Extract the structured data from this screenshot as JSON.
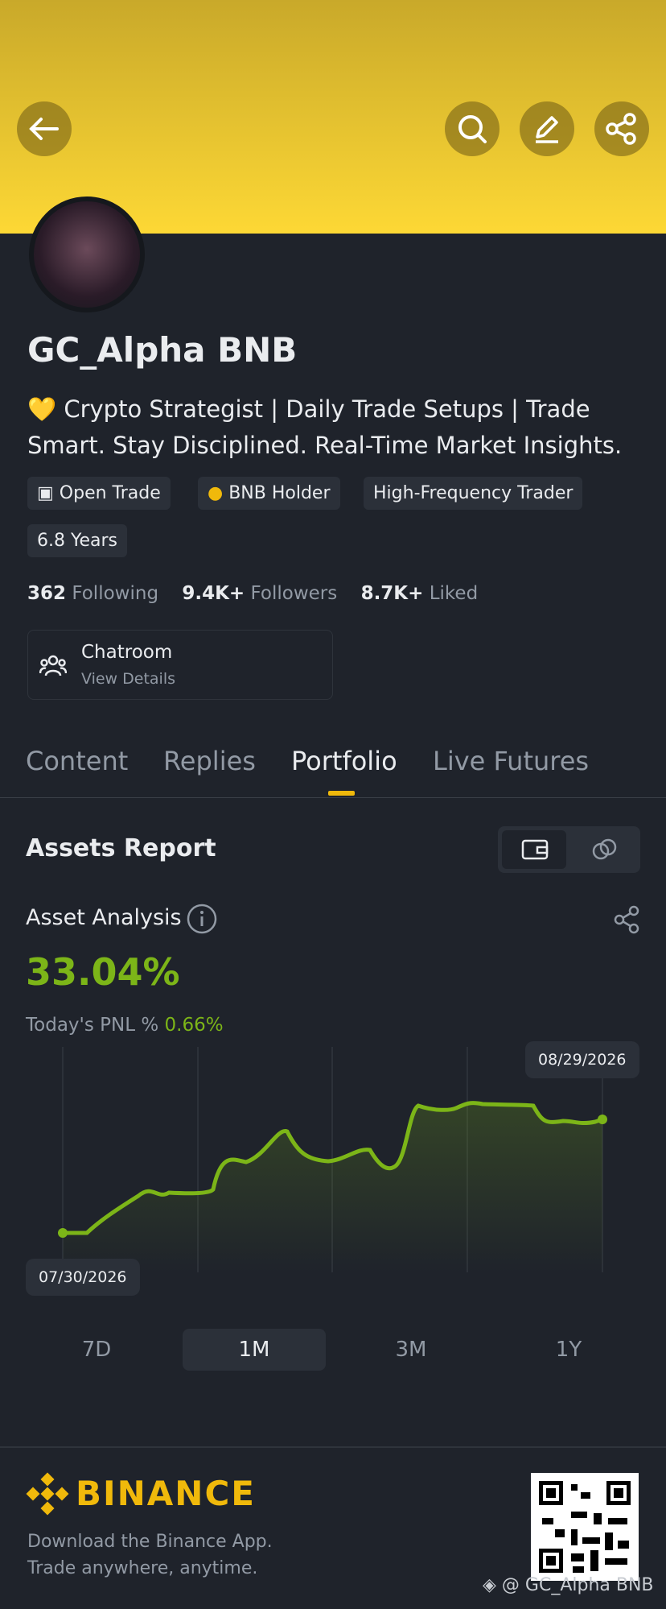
{
  "profile": {
    "name": "GC_Alpha BNB",
    "bio": "💛 Crypto Strategist | Daily Trade Setups | Trade Smart. Stay Disciplined. Real-Time Market Insights.",
    "badges": [
      "Open Trade",
      "BNB Holder",
      "High-Frequency Trader",
      "6.8 Years"
    ],
    "stats": [
      {
        "value": "362",
        "label": "Following"
      },
      {
        "value": "9.4K+",
        "label": "Followers"
      },
      {
        "value": "8.7K+",
        "label": "Liked"
      }
    ],
    "chatroom": {
      "title": "Chatroom",
      "subtitle": "View Details"
    }
  },
  "tabs": [
    "Content",
    "Replies",
    "Portfolio",
    "Live Futures"
  ],
  "report": {
    "title": "Assets Report",
    "analysis_title": "Asset Analysis",
    "total": "33.04%",
    "pnl_label": "Today's PNL %",
    "pnl": "0.66%",
    "start_date": "07/30/2026",
    "end_date": "08/29/2026",
    "ranges": [
      "7D",
      "1M",
      "3M",
      "1Y"
    ]
  },
  "footer": {
    "brand": "BINANCE",
    "lines": [
      "Download the Binance App.",
      "Trade anywhere, anytime."
    ],
    "watermark": "@ GC_Alpha BNB"
  }
}
